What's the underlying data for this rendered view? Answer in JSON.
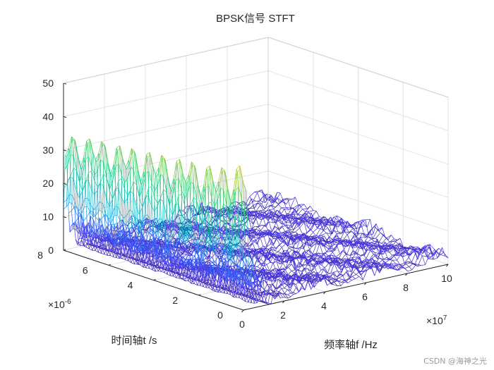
{
  "chart_data": {
    "type": "surface",
    "title": "BPSK信号 STFT",
    "xlabel": "频率轴f /Hz",
    "ylabel": "时间轴t /s",
    "zlabel": "",
    "x_ticks": [
      0,
      2,
      4,
      6,
      8,
      10
    ],
    "x_exponent": "×10",
    "x_exponent_power": "7",
    "y_ticks": [
      0,
      2,
      4,
      6,
      8
    ],
    "y_exponent": "×10",
    "y_exponent_power": "-6",
    "z_ticks": [
      0,
      10,
      20,
      30,
      40,
      50
    ],
    "xlim": [
      0,
      10
    ],
    "ylim": [
      0,
      8
    ],
    "zlim": [
      0,
      50
    ],
    "grid": true,
    "colormap": "parula",
    "carrier_freq_x": 0.12,
    "peak_magnitudes": [
      47,
      40,
      43,
      38,
      42,
      37,
      41,
      36,
      40,
      35,
      39,
      34,
      37
    ],
    "sideband_levels": [
      11,
      9,
      10,
      8,
      9,
      8,
      10,
      9,
      8,
      9,
      10,
      8,
      9
    ],
    "noise_floor": 2.5
  },
  "watermark": "CSDN @海神之光"
}
